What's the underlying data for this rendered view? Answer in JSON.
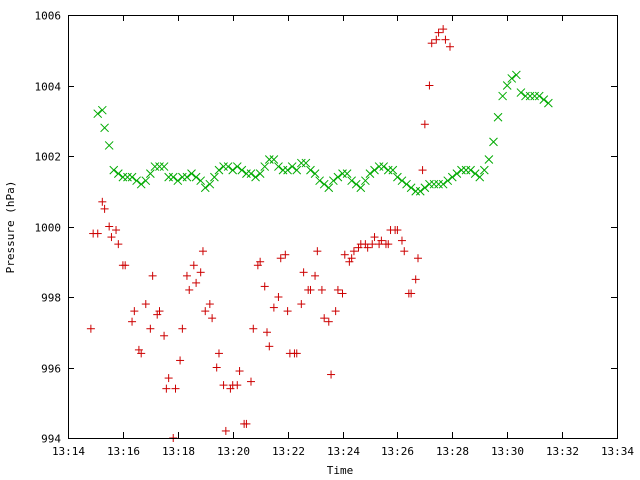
{
  "chart_data": {
    "type": "scatter",
    "title": "",
    "xlabel": "Time",
    "ylabel": "Pressure (hPa)",
    "xlim": [
      "13:14",
      "13:34"
    ],
    "ylim": [
      994,
      1006
    ],
    "x_ticks": [
      "13:14",
      "13:16",
      "13:18",
      "13:20",
      "13:22",
      "13:24",
      "13:26",
      "13:28",
      "13:30",
      "13:32",
      "13:34"
    ],
    "y_ticks": [
      "994",
      "996",
      "998",
      "1000",
      "1002",
      "1004",
      "1006"
    ],
    "grid": false,
    "legend": "none",
    "series": [
      {
        "marker": "plus",
        "color": "#cc0000",
        "points": [
          [
            "13:14:50",
            997.1
          ],
          [
            "13:14:55",
            999.8
          ],
          [
            "13:15:05",
            999.8
          ],
          [
            "13:15:15",
            1000.7
          ],
          [
            "13:15:20",
            1000.5
          ],
          [
            "13:15:30",
            1000.0
          ],
          [
            "13:15:35",
            999.7
          ],
          [
            "13:15:45",
            999.9
          ],
          [
            "13:15:50",
            999.5
          ],
          [
            "13:16:00",
            998.9
          ],
          [
            "13:16:05",
            998.9
          ],
          [
            "13:16:20",
            997.3
          ],
          [
            "13:16:25",
            997.6
          ],
          [
            "13:16:35",
            996.5
          ],
          [
            "13:16:40",
            996.4
          ],
          [
            "13:16:50",
            997.8
          ],
          [
            "13:17:00",
            997.1
          ],
          [
            "13:17:05",
            998.6
          ],
          [
            "13:17:15",
            997.5
          ],
          [
            "13:17:20",
            997.6
          ],
          [
            "13:17:30",
            996.9
          ],
          [
            "13:17:35",
            995.4
          ],
          [
            "13:17:40",
            995.7
          ],
          [
            "13:17:50",
            994.0
          ],
          [
            "13:17:55",
            995.4
          ],
          [
            "13:18:05",
            996.2
          ],
          [
            "13:18:10",
            997.1
          ],
          [
            "13:18:20",
            998.6
          ],
          [
            "13:18:25",
            998.2
          ],
          [
            "13:18:35",
            998.9
          ],
          [
            "13:18:40",
            998.4
          ],
          [
            "13:18:50",
            998.7
          ],
          [
            "13:18:55",
            999.3
          ],
          [
            "13:19:00",
            997.6
          ],
          [
            "13:19:10",
            997.8
          ],
          [
            "13:19:15",
            997.4
          ],
          [
            "13:19:25",
            996.0
          ],
          [
            "13:19:30",
            996.4
          ],
          [
            "13:19:40",
            995.5
          ],
          [
            "13:19:45",
            994.2
          ],
          [
            "13:19:55",
            995.4
          ],
          [
            "13:20:00",
            995.5
          ],
          [
            "13:20:10",
            995.5
          ],
          [
            "13:20:15",
            995.9
          ],
          [
            "13:20:25",
            994.4
          ],
          [
            "13:20:30",
            994.4
          ],
          [
            "13:20:40",
            995.6
          ],
          [
            "13:20:45",
            997.1
          ],
          [
            "13:20:55",
            998.9
          ],
          [
            "13:21:00",
            999.0
          ],
          [
            "13:21:10",
            998.3
          ],
          [
            "13:21:15",
            997.0
          ],
          [
            "13:21:20",
            996.6
          ],
          [
            "13:21:30",
            997.7
          ],
          [
            "13:21:40",
            998.0
          ],
          [
            "13:21:45",
            999.1
          ],
          [
            "13:21:55",
            999.2
          ],
          [
            "13:22:00",
            997.6
          ],
          [
            "13:22:05",
            996.4
          ],
          [
            "13:22:15",
            996.4
          ],
          [
            "13:22:20",
            996.4
          ],
          [
            "13:22:30",
            997.8
          ],
          [
            "13:22:35",
            998.7
          ],
          [
            "13:22:45",
            998.2
          ],
          [
            "13:22:50",
            998.2
          ],
          [
            "13:23:00",
            998.6
          ],
          [
            "13:23:05",
            999.3
          ],
          [
            "13:23:15",
            998.2
          ],
          [
            "13:23:20",
            997.4
          ],
          [
            "13:23:30",
            997.3
          ],
          [
            "13:23:35",
            995.8
          ],
          [
            "13:23:45",
            997.6
          ],
          [
            "13:23:50",
            998.2
          ],
          [
            "13:24:00",
            998.1
          ],
          [
            "13:24:05",
            999.2
          ],
          [
            "13:24:15",
            999.0
          ],
          [
            "13:24:20",
            999.1
          ],
          [
            "13:24:25",
            999.3
          ],
          [
            "13:24:35",
            999.4
          ],
          [
            "13:24:40",
            999.5
          ],
          [
            "13:24:50",
            999.5
          ],
          [
            "13:24:55",
            999.4
          ],
          [
            "13:25:05",
            999.5
          ],
          [
            "13:25:10",
            999.7
          ],
          [
            "13:25:20",
            999.5
          ],
          [
            "13:25:25",
            999.6
          ],
          [
            "13:25:35",
            999.5
          ],
          [
            "13:25:40",
            999.5
          ],
          [
            "13:25:45",
            999.9
          ],
          [
            "13:25:55",
            999.9
          ],
          [
            "13:26:00",
            999.9
          ],
          [
            "13:26:10",
            999.6
          ],
          [
            "13:26:15",
            999.3
          ],
          [
            "13:26:25",
            998.1
          ],
          [
            "13:26:30",
            998.1
          ],
          [
            "13:26:40",
            998.5
          ],
          [
            "13:26:45",
            999.1
          ],
          [
            "13:26:55",
            1001.6
          ],
          [
            "13:27:00",
            1002.9
          ],
          [
            "13:27:10",
            1004.0
          ],
          [
            "13:27:15",
            1005.2
          ],
          [
            "13:27:25",
            1005.3
          ],
          [
            "13:27:30",
            1005.5
          ],
          [
            "13:27:40",
            1005.6
          ],
          [
            "13:27:45",
            1005.3
          ],
          [
            "13:27:55",
            1005.1
          ]
        ]
      },
      {
        "marker": "cross",
        "color": "#00aa00",
        "points": [
          [
            "13:15:05",
            1003.2
          ],
          [
            "13:15:15",
            1003.3
          ],
          [
            "13:15:20",
            1002.8
          ],
          [
            "13:15:30",
            1002.3
          ],
          [
            "13:15:40",
            1001.6
          ],
          [
            "13:15:50",
            1001.5
          ],
          [
            "13:16:00",
            1001.4
          ],
          [
            "13:16:10",
            1001.4
          ],
          [
            "13:16:20",
            1001.4
          ],
          [
            "13:16:30",
            1001.3
          ],
          [
            "13:16:40",
            1001.2
          ],
          [
            "13:16:50",
            1001.3
          ],
          [
            "13:17:00",
            1001.5
          ],
          [
            "13:17:10",
            1001.7
          ],
          [
            "13:17:20",
            1001.7
          ],
          [
            "13:17:30",
            1001.7
          ],
          [
            "13:17:40",
            1001.4
          ],
          [
            "13:17:50",
            1001.4
          ],
          [
            "13:18:00",
            1001.3
          ],
          [
            "13:18:10",
            1001.4
          ],
          [
            "13:18:20",
            1001.4
          ],
          [
            "13:18:30",
            1001.5
          ],
          [
            "13:18:40",
            1001.4
          ],
          [
            "13:18:50",
            1001.3
          ],
          [
            "13:19:00",
            1001.1
          ],
          [
            "13:19:10",
            1001.2
          ],
          [
            "13:19:20",
            1001.4
          ],
          [
            "13:19:30",
            1001.6
          ],
          [
            "13:19:40",
            1001.7
          ],
          [
            "13:19:50",
            1001.7
          ],
          [
            "13:20:00",
            1001.6
          ],
          [
            "13:20:10",
            1001.7
          ],
          [
            "13:20:20",
            1001.6
          ],
          [
            "13:20:30",
            1001.5
          ],
          [
            "13:20:40",
            1001.5
          ],
          [
            "13:20:50",
            1001.4
          ],
          [
            "13:21:00",
            1001.5
          ],
          [
            "13:21:10",
            1001.7
          ],
          [
            "13:21:20",
            1001.9
          ],
          [
            "13:21:30",
            1001.9
          ],
          [
            "13:21:40",
            1001.7
          ],
          [
            "13:21:50",
            1001.6
          ],
          [
            "13:22:00",
            1001.6
          ],
          [
            "13:22:10",
            1001.7
          ],
          [
            "13:22:20",
            1001.6
          ],
          [
            "13:22:30",
            1001.8
          ],
          [
            "13:22:40",
            1001.8
          ],
          [
            "13:22:50",
            1001.6
          ],
          [
            "13:23:00",
            1001.5
          ],
          [
            "13:23:10",
            1001.3
          ],
          [
            "13:23:20",
            1001.2
          ],
          [
            "13:23:30",
            1001.1
          ],
          [
            "13:23:40",
            1001.3
          ],
          [
            "13:23:50",
            1001.4
          ],
          [
            "13:24:00",
            1001.5
          ],
          [
            "13:24:10",
            1001.5
          ],
          [
            "13:24:20",
            1001.3
          ],
          [
            "13:24:30",
            1001.2
          ],
          [
            "13:24:40",
            1001.1
          ],
          [
            "13:24:50",
            1001.3
          ],
          [
            "13:25:00",
            1001.5
          ],
          [
            "13:25:10",
            1001.6
          ],
          [
            "13:25:20",
            1001.7
          ],
          [
            "13:25:30",
            1001.7
          ],
          [
            "13:25:40",
            1001.6
          ],
          [
            "13:25:50",
            1001.6
          ],
          [
            "13:26:00",
            1001.4
          ],
          [
            "13:26:10",
            1001.3
          ],
          [
            "13:26:20",
            1001.2
          ],
          [
            "13:26:30",
            1001.1
          ],
          [
            "13:26:40",
            1001.0
          ],
          [
            "13:26:50",
            1001.0
          ],
          [
            "13:27:00",
            1001.1
          ],
          [
            "13:27:10",
            1001.2
          ],
          [
            "13:27:20",
            1001.2
          ],
          [
            "13:27:30",
            1001.2
          ],
          [
            "13:27:40",
            1001.2
          ],
          [
            "13:27:50",
            1001.3
          ],
          [
            "13:28:00",
            1001.4
          ],
          [
            "13:28:10",
            1001.5
          ],
          [
            "13:28:20",
            1001.6
          ],
          [
            "13:28:30",
            1001.6
          ],
          [
            "13:28:40",
            1001.6
          ],
          [
            "13:28:50",
            1001.5
          ],
          [
            "13:29:00",
            1001.4
          ],
          [
            "13:29:10",
            1001.6
          ],
          [
            "13:29:20",
            1001.9
          ],
          [
            "13:29:30",
            1002.4
          ],
          [
            "13:29:40",
            1003.1
          ],
          [
            "13:29:50",
            1003.7
          ],
          [
            "13:30:00",
            1004.0
          ],
          [
            "13:30:10",
            1004.2
          ],
          [
            "13:30:20",
            1004.3
          ],
          [
            "13:30:30",
            1003.8
          ],
          [
            "13:30:40",
            1003.7
          ],
          [
            "13:30:50",
            1003.7
          ],
          [
            "13:31:00",
            1003.7
          ],
          [
            "13:31:10",
            1003.7
          ],
          [
            "13:31:20",
            1003.6
          ],
          [
            "13:31:30",
            1003.5
          ]
        ]
      }
    ]
  }
}
